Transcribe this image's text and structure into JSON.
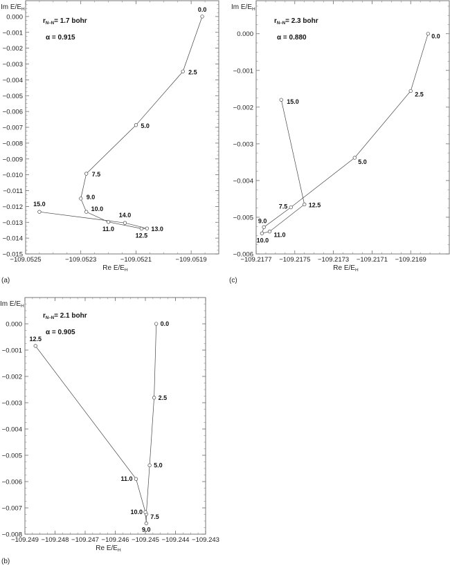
{
  "chart_data": [
    {
      "id": "a",
      "type": "line",
      "panel_label": "(a)",
      "xlabel": "Re E/E_H",
      "ylabel": "Im E/E_H",
      "annotation_r": "1.7 bohr",
      "annotation_alpha": "0.915",
      "xlim": [
        -109.0525,
        -109.0518
      ],
      "ylim": [
        -0.015,
        0.001
      ],
      "xticks": [
        -109.0525,
        -109.0523,
        -109.0521,
        -109.0519
      ],
      "xtick_labels": [
        "−109.0525",
        "−109.0523",
        "−109.0521",
        "−109.0519"
      ],
      "yticks": [
        0.0,
        -0.001,
        -0.002,
        -0.003,
        -0.004,
        -0.005,
        -0.006,
        -0.007,
        -0.008,
        -0.009,
        -0.01,
        -0.011,
        -0.012,
        -0.013,
        -0.014,
        -0.015
      ],
      "ytick_labels": [
        "0.000",
        "−0.001",
        "−0.002",
        "−0.003",
        "−0.004",
        "−0.005",
        "−0.006",
        "−0.007",
        "−0.008",
        "−0.009",
        "−0.010",
        "−0.011",
        "−0.012",
        "−0.013",
        "−0.014",
        "−0.015"
      ],
      "points": [
        {
          "label": "0.0",
          "x": -109.05186,
          "y": 0.0
        },
        {
          "label": "2.5",
          "x": -109.05193,
          "y": -0.00347
        },
        {
          "label": "5.0",
          "x": -109.0521,
          "y": -0.00686
        },
        {
          "label": "7.5",
          "x": -109.05228,
          "y": -0.00993
        },
        {
          "label": "9.0",
          "x": -109.0523,
          "y": -0.0115
        },
        {
          "label": "10.0",
          "x": -109.05228,
          "y": -0.01234
        },
        {
          "label": "11.0",
          "x": -109.0522,
          "y": -0.01298
        },
        {
          "label": "12.5",
          "x": -109.05208,
          "y": -0.0134
        },
        {
          "label": "13.0",
          "x": -109.05206,
          "y": -0.01339
        },
        {
          "label": "14.0",
          "x": -109.05214,
          "y": -0.01304
        },
        {
          "label": "15.0",
          "x": -109.05245,
          "y": -0.01234
        }
      ]
    },
    {
      "id": "c",
      "type": "line",
      "panel_label": "(c)",
      "xlabel": "Re E/E_H",
      "ylabel": "Im E/E_H",
      "annotation_r": "2.3 bohr",
      "annotation_alpha": "0.880",
      "xlim": [
        -109.2177,
        -109.2167
      ],
      "ylim": [
        -0.006,
        0.0009
      ],
      "xticks": [
        -109.2177,
        -109.2175,
        -109.2173,
        -109.2171,
        -109.2169
      ],
      "xtick_labels": [
        "−109.2177",
        "−109.2175",
        "−109.2173",
        "−109.2171",
        "−109.2169"
      ],
      "yticks": [
        0.0,
        -0.001,
        -0.002,
        -0.003,
        -0.004,
        -0.005,
        -0.006
      ],
      "ytick_labels": [
        "0.000",
        "−0.001",
        "−0.002",
        "−0.003",
        "−0.004",
        "−0.005",
        "−0.006"
      ],
      "points": [
        {
          "label": "0.0",
          "x": -109.21681,
          "y": 0.0
        },
        {
          "label": "2.5",
          "x": -109.2169,
          "y": -0.00156
        },
        {
          "label": "5.0",
          "x": -109.21719,
          "y": -0.00338
        },
        {
          "label": "7.5",
          "x": -109.21752,
          "y": -0.00473
        },
        {
          "label": "9.0",
          "x": -109.21766,
          "y": -0.00527
        },
        {
          "label": "10.0",
          "x": -109.21767,
          "y": -0.00544
        },
        {
          "label": "11.0",
          "x": -109.21763,
          "y": -0.00539
        },
        {
          "label": "12.5",
          "x": -109.21745,
          "y": -0.00465
        },
        {
          "label": "15.0",
          "x": -109.21757,
          "y": -0.0018
        }
      ]
    },
    {
      "id": "b",
      "type": "line",
      "panel_label": "(b)",
      "xlabel": "Re E/E_H",
      "ylabel": "Im E/E_H",
      "annotation_r": "2.1 bohr",
      "annotation_alpha": "0.905",
      "xlim": [
        -109.249,
        -109.243
      ],
      "ylim": [
        -0.008,
        0.001
      ],
      "xticks": [
        -109.249,
        -109.248,
        -109.247,
        -109.246,
        -109.245,
        -109.244,
        -109.243
      ],
      "xtick_labels": [
        "−109.249",
        "−109.248",
        "−109.247",
        "−109.246",
        "−109.245",
        "−109.244",
        "−109.243"
      ],
      "yticks": [
        0.0,
        -0.001,
        -0.002,
        -0.003,
        -0.004,
        -0.005,
        -0.006,
        -0.007,
        -0.008
      ],
      "ytick_labels": [
        "0.000",
        "−0.001",
        "−0.002",
        "−0.003",
        "−0.004",
        "−0.005",
        "−0.006",
        "−0.007",
        "−0.008"
      ],
      "points": [
        {
          "label": "0.0",
          "x": -109.24464,
          "y": 0.0
        },
        {
          "label": "2.5",
          "x": -109.24471,
          "y": -0.00281
        },
        {
          "label": "5.0",
          "x": -109.24486,
          "y": -0.00538
        },
        {
          "label": "7.5",
          "x": -109.24497,
          "y": -0.00724
        },
        {
          "label": "9.0",
          "x": -109.24497,
          "y": -0.00759
        },
        {
          "label": "10.0",
          "x": -109.245,
          "y": -0.00716
        },
        {
          "label": "11.0",
          "x": -109.24531,
          "y": -0.0059
        },
        {
          "label": "12.5",
          "x": -109.24865,
          "y": -0.00084
        }
      ]
    }
  ],
  "labels": {
    "r_prefix": "r",
    "r_subscript": "N−N",
    "alpha_symbol": "α",
    "equals": "=",
    "axis_sub": "H"
  }
}
